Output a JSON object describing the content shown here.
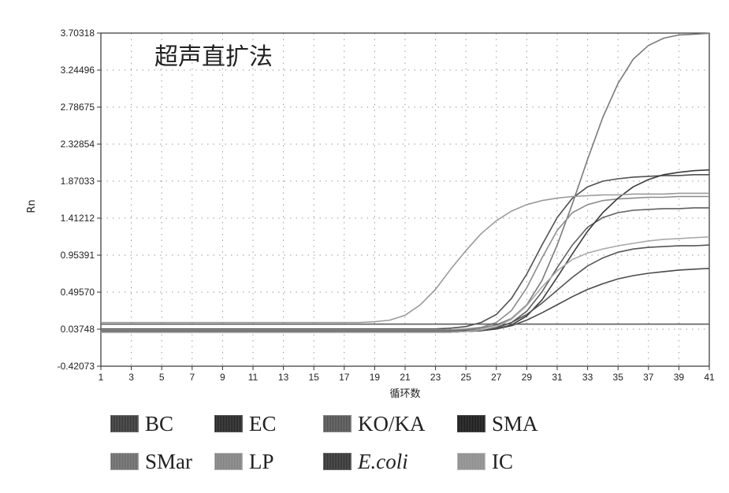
{
  "chart_data": {
    "type": "line",
    "title": "超声直扩法",
    "xlabel": "循环数",
    "ylabel": "Rn",
    "x": [
      1,
      2,
      3,
      4,
      5,
      6,
      7,
      8,
      9,
      10,
      11,
      12,
      13,
      14,
      15,
      16,
      17,
      18,
      19,
      20,
      21,
      22,
      23,
      24,
      25,
      26,
      27,
      28,
      29,
      30,
      31,
      32,
      33,
      34,
      35,
      36,
      37,
      38,
      39,
      40,
      41
    ],
    "xticks": [
      "1",
      "3",
      "5",
      "7",
      "9",
      "11",
      "13",
      "15",
      "17",
      "19",
      "21",
      "23",
      "25",
      "27",
      "29",
      "31",
      "33",
      "35",
      "37",
      "39",
      "41"
    ],
    "yticks": [
      "3.70318",
      "3.24496",
      "2.78675",
      "2.32854",
      "1.87033",
      "1.41212",
      "0.95391",
      "0.49570",
      "0.03748",
      "-0.42073"
    ],
    "xlim": [
      1,
      41
    ],
    "ylim": [
      -0.42073,
      3.70318
    ],
    "grid": true,
    "series": [
      {
        "name": "BC",
        "values": [
          0.02,
          0.02,
          0.02,
          0.02,
          0.02,
          0.02,
          0.02,
          0.02,
          0.02,
          0.02,
          0.02,
          0.02,
          0.02,
          0.02,
          0.02,
          0.02,
          0.02,
          0.02,
          0.02,
          0.02,
          0.02,
          0.02,
          0.02,
          0.02,
          0.03,
          0.05,
          0.09,
          0.17,
          0.34,
          0.64,
          1.08,
          1.59,
          2.14,
          2.66,
          3.08,
          3.38,
          3.55,
          3.64,
          3.68,
          3.69,
          3.7
        ]
      },
      {
        "name": "EC",
        "values": [
          0.04,
          0.04,
          0.04,
          0.04,
          0.04,
          0.04,
          0.04,
          0.04,
          0.04,
          0.04,
          0.04,
          0.04,
          0.04,
          0.04,
          0.04,
          0.04,
          0.04,
          0.04,
          0.04,
          0.04,
          0.04,
          0.04,
          0.04,
          0.05,
          0.07,
          0.12,
          0.22,
          0.42,
          0.72,
          1.08,
          1.42,
          1.66,
          1.8,
          1.87,
          1.9,
          1.92,
          1.93,
          1.94,
          1.94,
          1.95,
          1.95
        ]
      },
      {
        "name": "KO/KA",
        "values": [
          0.03,
          0.03,
          0.03,
          0.03,
          0.03,
          0.03,
          0.03,
          0.03,
          0.03,
          0.03,
          0.03,
          0.03,
          0.03,
          0.03,
          0.03,
          0.03,
          0.03,
          0.03,
          0.03,
          0.03,
          0.03,
          0.03,
          0.03,
          0.03,
          0.04,
          0.06,
          0.12,
          0.27,
          0.55,
          0.92,
          1.26,
          1.48,
          1.58,
          1.63,
          1.65,
          1.66,
          1.67,
          1.67,
          1.68,
          1.68,
          1.68
        ]
      },
      {
        "name": "SMA",
        "values": [
          0.0,
          0.0,
          0.0,
          0.0,
          0.0,
          0.0,
          0.0,
          0.0,
          0.0,
          0.0,
          0.0,
          0.0,
          0.0,
          0.0,
          0.0,
          0.0,
          0.0,
          0.0,
          0.0,
          0.0,
          0.0,
          0.0,
          0.0,
          0.0,
          0.01,
          0.02,
          0.05,
          0.12,
          0.26,
          0.5,
          0.8,
          1.08,
          1.3,
          1.42,
          1.48,
          1.51,
          1.52,
          1.53,
          1.53,
          1.54,
          1.54
        ]
      },
      {
        "name": "SMar",
        "values": [
          0.0,
          0.0,
          0.0,
          0.0,
          0.0,
          0.0,
          0.0,
          0.0,
          0.0,
          0.0,
          0.0,
          0.0,
          0.0,
          0.0,
          0.0,
          0.0,
          0.0,
          0.0,
          0.0,
          0.0,
          0.0,
          0.0,
          0.0,
          0.0,
          0.01,
          0.02,
          0.04,
          0.09,
          0.2,
          0.4,
          0.68,
          0.97,
          1.25,
          1.48,
          1.66,
          1.8,
          1.89,
          1.95,
          1.98,
          2.0,
          2.01
        ]
      },
      {
        "name": "LP",
        "values": [
          0.12,
          0.12,
          0.12,
          0.12,
          0.12,
          0.12,
          0.12,
          0.12,
          0.12,
          0.12,
          0.12,
          0.12,
          0.12,
          0.12,
          0.12,
          0.12,
          0.12,
          0.12,
          0.13,
          0.15,
          0.21,
          0.34,
          0.53,
          0.78,
          1.01,
          1.22,
          1.38,
          1.5,
          1.58,
          1.63,
          1.66,
          1.68,
          1.69,
          1.7,
          1.7,
          1.71,
          1.71,
          1.71,
          1.72,
          1.72,
          1.72
        ]
      },
      {
        "name": "E.coli",
        "values": [
          0.01,
          0.01,
          0.01,
          0.01,
          0.01,
          0.01,
          0.01,
          0.01,
          0.01,
          0.01,
          0.01,
          0.01,
          0.01,
          0.01,
          0.01,
          0.01,
          0.01,
          0.01,
          0.01,
          0.01,
          0.01,
          0.01,
          0.01,
          0.01,
          0.02,
          0.03,
          0.06,
          0.12,
          0.22,
          0.36,
          0.52,
          0.68,
          0.82,
          0.92,
          0.99,
          1.03,
          1.05,
          1.06,
          1.07,
          1.07,
          1.08
        ]
      },
      {
        "name": "IC",
        "values": [
          0.0,
          0.0,
          0.0,
          0.0,
          0.0,
          0.0,
          0.0,
          0.0,
          0.0,
          0.0,
          0.0,
          0.0,
          0.0,
          0.0,
          0.0,
          0.0,
          0.0,
          0.0,
          0.0,
          0.0,
          0.0,
          0.0,
          0.0,
          0.0,
          0.01,
          0.02,
          0.04,
          0.08,
          0.15,
          0.24,
          0.34,
          0.44,
          0.53,
          0.6,
          0.66,
          0.7,
          0.73,
          0.75,
          0.77,
          0.78,
          0.79
        ]
      },
      {
        "values": [
          0.1,
          0.1,
          0.1,
          0.1,
          0.1,
          0.1,
          0.1,
          0.1,
          0.1,
          0.1,
          0.1,
          0.1,
          0.1,
          0.1,
          0.1,
          0.1,
          0.1,
          0.1,
          0.1,
          0.1,
          0.1,
          0.1,
          0.1,
          0.1,
          0.1,
          0.1,
          0.1,
          0.1,
          0.1,
          0.1,
          0.1,
          0.1,
          0.1,
          0.1,
          0.1,
          0.1,
          0.1,
          0.1,
          0.1,
          0.1,
          0.1
        ]
      },
      {
        "values": [
          0.0,
          0.0,
          0.0,
          0.0,
          0.0,
          0.0,
          0.0,
          0.0,
          0.0,
          0.0,
          0.0,
          0.0,
          0.0,
          0.0,
          0.0,
          0.0,
          0.0,
          0.0,
          0.0,
          0.0,
          0.0,
          0.0,
          0.0,
          0.0,
          0.01,
          0.03,
          0.07,
          0.16,
          0.33,
          0.56,
          0.76,
          0.9,
          0.98,
          1.03,
          1.07,
          1.1,
          1.13,
          1.15,
          1.16,
          1.17,
          1.18
        ]
      }
    ],
    "legend": [
      {
        "label": "BC",
        "color": "#6e6e6e",
        "italic": false
      },
      {
        "label": "EC",
        "color": "#5a5a5a",
        "italic": false
      },
      {
        "label": "KO/KA",
        "color": "#8a8a8a",
        "italic": false
      },
      {
        "label": "SMA",
        "color": "#4a4a4a",
        "italic": false
      },
      {
        "label": "SMar",
        "color": "#a0a0a0",
        "italic": false
      },
      {
        "label": "LP",
        "color": "#b4b4b4",
        "italic": false
      },
      {
        "label": "E.coli",
        "color": "#6a6a6a",
        "italic": true
      },
      {
        "label": "IC",
        "color": "#bdbdbd",
        "italic": false
      }
    ],
    "line_colors": [
      "#7a7a7a",
      "#505050",
      "#8c8c8c",
      "#606060",
      "#3c3c3c",
      "#9a9a9a",
      "#555555",
      "#4a4a4a",
      "#5c5c5c",
      "#aaaaaa"
    ]
  }
}
